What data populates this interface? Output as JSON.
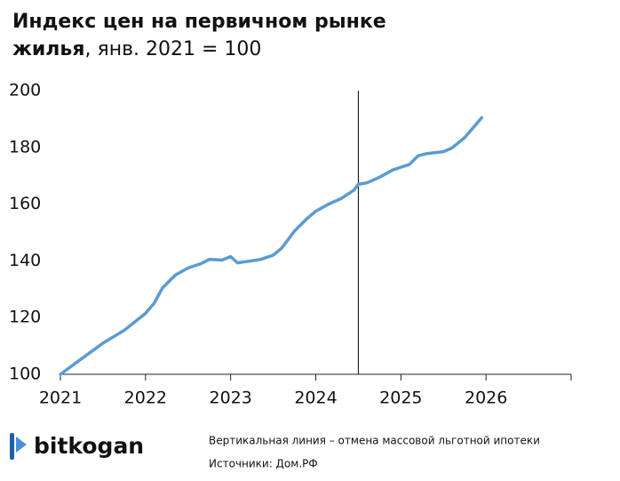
{
  "chart_data": {
    "type": "line",
    "title": [
      "Индекс цен на первичном рынке",
      "жилья"
    ],
    "subtitle": ", янв. 2021 = 100",
    "x": [
      2021,
      2021.25,
      2021.5,
      2021.75,
      2022,
      2022.1,
      2022.2,
      2022.35,
      2022.5,
      2022.65,
      2022.75,
      2022.9,
      2023,
      2023.08,
      2023.2,
      2023.35,
      2023.5,
      2023.6,
      2023.75,
      2023.9,
      2024,
      2024.15,
      2024.3,
      2024.45,
      2024.5,
      2024.6,
      2024.75,
      2024.9,
      2025,
      2025.1,
      2025.2,
      2025.3,
      2025.5,
      2025.6,
      2025.75,
      2025.85,
      2025.95
    ],
    "series": [
      {
        "color": "#5b9bd0",
        "values": [
          100,
          105.5,
          111,
          115.5,
          121.5,
          125,
          130.5,
          135,
          137.5,
          139,
          140.5,
          140.3,
          141.5,
          139.3,
          139.8,
          140.5,
          142,
          144.5,
          150.5,
          155,
          157.5,
          160,
          162,
          165,
          167,
          167.5,
          169.5,
          172,
          173,
          174,
          177,
          177.8,
          178.5,
          179.8,
          183.5,
          187,
          190.5
        ]
      }
    ],
    "xlim": [
      2021,
      2027
    ],
    "xticks": [
      2021,
      2022,
      2023,
      2024,
      2025,
      2026
    ],
    "ylim": [
      100,
      200
    ],
    "yticks": [
      100,
      120,
      140,
      160,
      180,
      200
    ],
    "vline": {
      "x": 2024.5,
      "color": "#000000"
    },
    "note": "Вертикальная линия – отмена массовой льготной ипотеки",
    "source": "Источники: Дом.РФ",
    "logo": "bitkogan"
  }
}
